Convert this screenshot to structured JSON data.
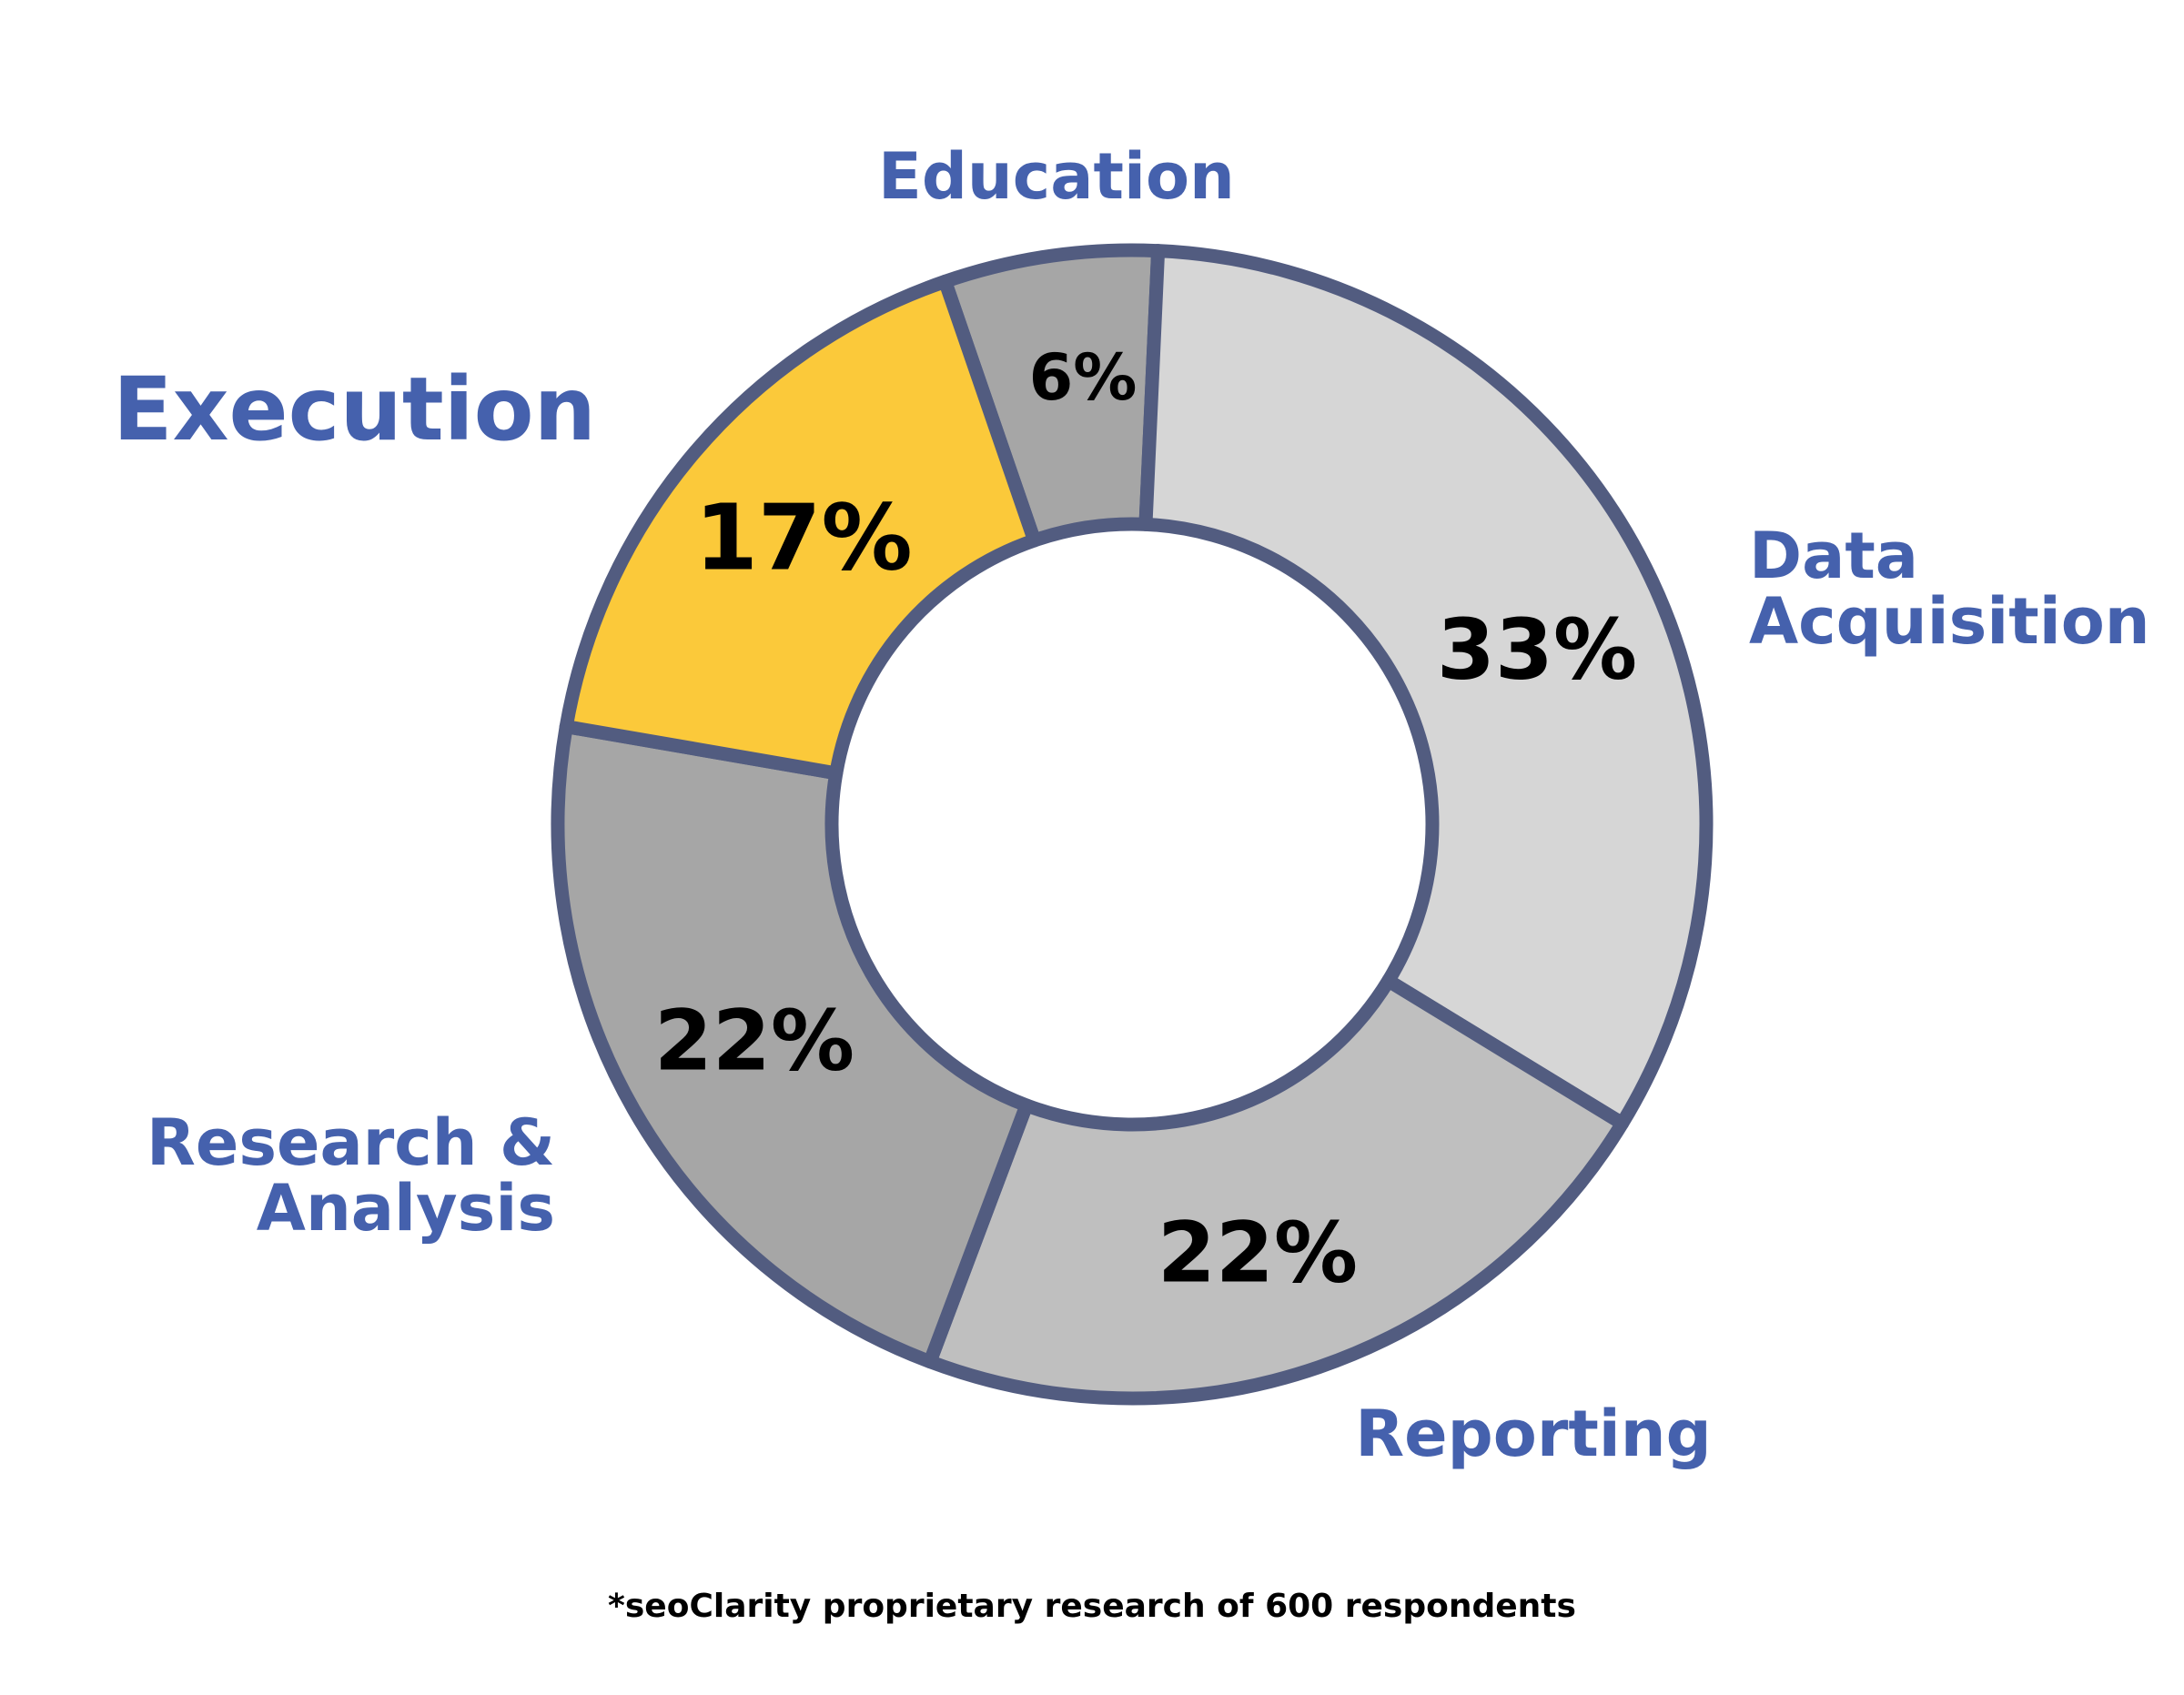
{
  "chart_data": {
    "type": "donut",
    "categories": [
      "Education",
      "Data Acquisition",
      "Reporting",
      "Research & Analysis",
      "Execution"
    ],
    "values": [
      6,
      33,
      22,
      22,
      17
    ],
    "value_labels": [
      "6%",
      "33%",
      "22%",
      "22%",
      "17%"
    ],
    "colors": [
      "#a6a6a6",
      "#d6d6d6",
      "#bfbfbf",
      "#a6a6a6",
      "#fbc93a"
    ],
    "note": "*seoClarity proprietary research of 600 respondents"
  }
}
